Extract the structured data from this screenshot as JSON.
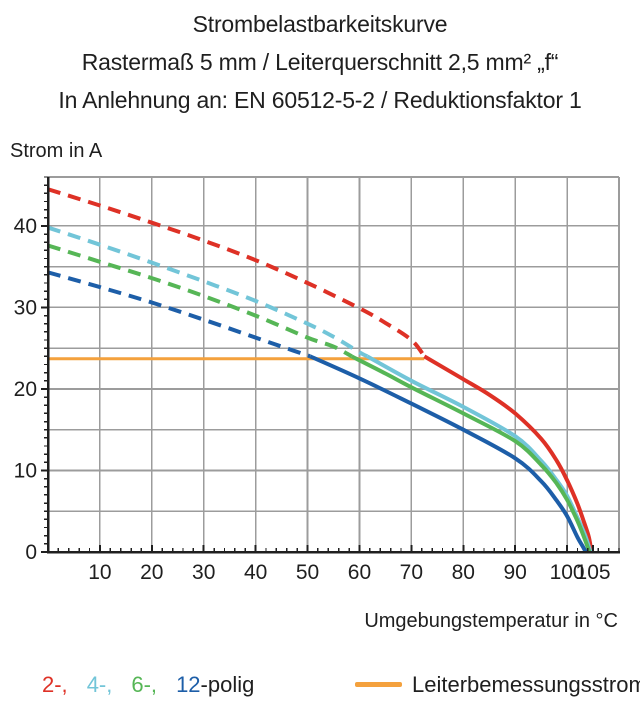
{
  "title": {
    "line1": "Strombelastbarkeitskurve",
    "line2": "Rastermaß 5 mm / Leiterquerschnitt 2,5 mm² „f“",
    "line3": "In Anlehnung an: EN 60512-5-2 / Reduktionsfaktor 1"
  },
  "chart_data": {
    "type": "line",
    "title": "Strombelastbarkeitskurve",
    "xlabel": "Umgebungstemperatur in °C",
    "ylabel": "Strom in A",
    "xlim": [
      0,
      110
    ],
    "ylim": [
      0,
      46
    ],
    "x_major_ticks": [
      10,
      20,
      30,
      40,
      50,
      60,
      70,
      80,
      90,
      100,
      105
    ],
    "x_minor_step": 2,
    "y_tick_labels": [
      0,
      10,
      20,
      30,
      40
    ],
    "y_minor_step": 1,
    "grid": {
      "x_step": 10,
      "y_step": 5,
      "color": "#9c9c9c"
    },
    "axis_color": "#1f1f1f",
    "rated_line": {
      "label": "Leiterbemessungsstrom",
      "value_a": 24,
      "plotted_at": 23.7,
      "x_start": 0,
      "x_end": 72.5,
      "color": "#f4a13d"
    },
    "series": [
      {
        "name": "2-polig",
        "color": "#de3126",
        "dashed_until_c": 72.5,
        "points": [
          [
            0,
            44.5
          ],
          [
            10,
            42.5
          ],
          [
            20,
            40.4
          ],
          [
            30,
            38.2
          ],
          [
            40,
            35.8
          ],
          [
            50,
            33.0
          ],
          [
            60,
            29.9
          ],
          [
            65,
            28.1
          ],
          [
            70,
            26.0
          ],
          [
            72.5,
            24.0
          ],
          [
            80,
            21.2
          ],
          [
            85,
            19.3
          ],
          [
            90,
            17.0
          ],
          [
            95,
            13.9
          ],
          [
            98,
            11.2
          ],
          [
            100,
            8.8
          ],
          [
            102,
            5.9
          ],
          [
            103.3,
            3.6
          ],
          [
            104.2,
            1.8
          ],
          [
            104.7,
            0
          ]
        ]
      },
      {
        "name": "4-polig",
        "color": "#72c5d8",
        "dashed_until_c": 61.5,
        "points": [
          [
            0,
            39.8
          ],
          [
            10,
            37.7
          ],
          [
            20,
            35.5
          ],
          [
            30,
            33.2
          ],
          [
            40,
            30.8
          ],
          [
            50,
            28.0
          ],
          [
            55,
            26.4
          ],
          [
            60,
            24.5
          ],
          [
            61.5,
            24.0
          ],
          [
            70,
            21.0
          ],
          [
            80,
            17.8
          ],
          [
            90,
            14.2
          ],
          [
            95,
            11.2
          ],
          [
            98,
            8.8
          ],
          [
            100,
            6.9
          ],
          [
            102,
            4.2
          ],
          [
            103.5,
            2.0
          ],
          [
            104.5,
            0
          ]
        ]
      },
      {
        "name": "6-polig",
        "color": "#56b656",
        "dashed_until_c": 58.5,
        "points": [
          [
            0,
            37.6
          ],
          [
            10,
            35.6
          ],
          [
            20,
            33.6
          ],
          [
            30,
            31.4
          ],
          [
            40,
            29.0
          ],
          [
            50,
            26.3
          ],
          [
            55,
            25.2
          ],
          [
            58.5,
            24.0
          ],
          [
            65,
            21.9
          ],
          [
            70,
            20.2
          ],
          [
            80,
            17.0
          ],
          [
            90,
            13.6
          ],
          [
            95,
            10.7
          ],
          [
            98,
            8.4
          ],
          [
            100,
            6.4
          ],
          [
            102,
            3.8
          ],
          [
            103.4,
            1.6
          ],
          [
            104.3,
            0
          ]
        ]
      },
      {
        "name": "12-polig",
        "color": "#1d5ea8",
        "dashed_until_c": 50.5,
        "points": [
          [
            0,
            34.3
          ],
          [
            10,
            32.5
          ],
          [
            20,
            30.6
          ],
          [
            30,
            28.5
          ],
          [
            40,
            26.3
          ],
          [
            45,
            25.2
          ],
          [
            50.5,
            24.0
          ],
          [
            60,
            21.3
          ],
          [
            70,
            18.2
          ],
          [
            80,
            15.0
          ],
          [
            90,
            11.5
          ],
          [
            95,
            8.7
          ],
          [
            98,
            6.3
          ],
          [
            100,
            4.4
          ],
          [
            102,
            1.8
          ],
          [
            103,
            0.7
          ],
          [
            103.6,
            0
          ]
        ]
      }
    ]
  },
  "legend": {
    "poles": [
      {
        "label": "2-,",
        "color": "#de3126"
      },
      {
        "label": "4-,",
        "color": "#72c5d8"
      },
      {
        "label": "6-,",
        "color": "#56b656"
      },
      {
        "label": "12",
        "color": "#1d5ea8"
      }
    ],
    "poles_suffix": "-polig",
    "rated": {
      "label": "Leiterbemessungsstrom",
      "color": "#f4a13d"
    }
  }
}
